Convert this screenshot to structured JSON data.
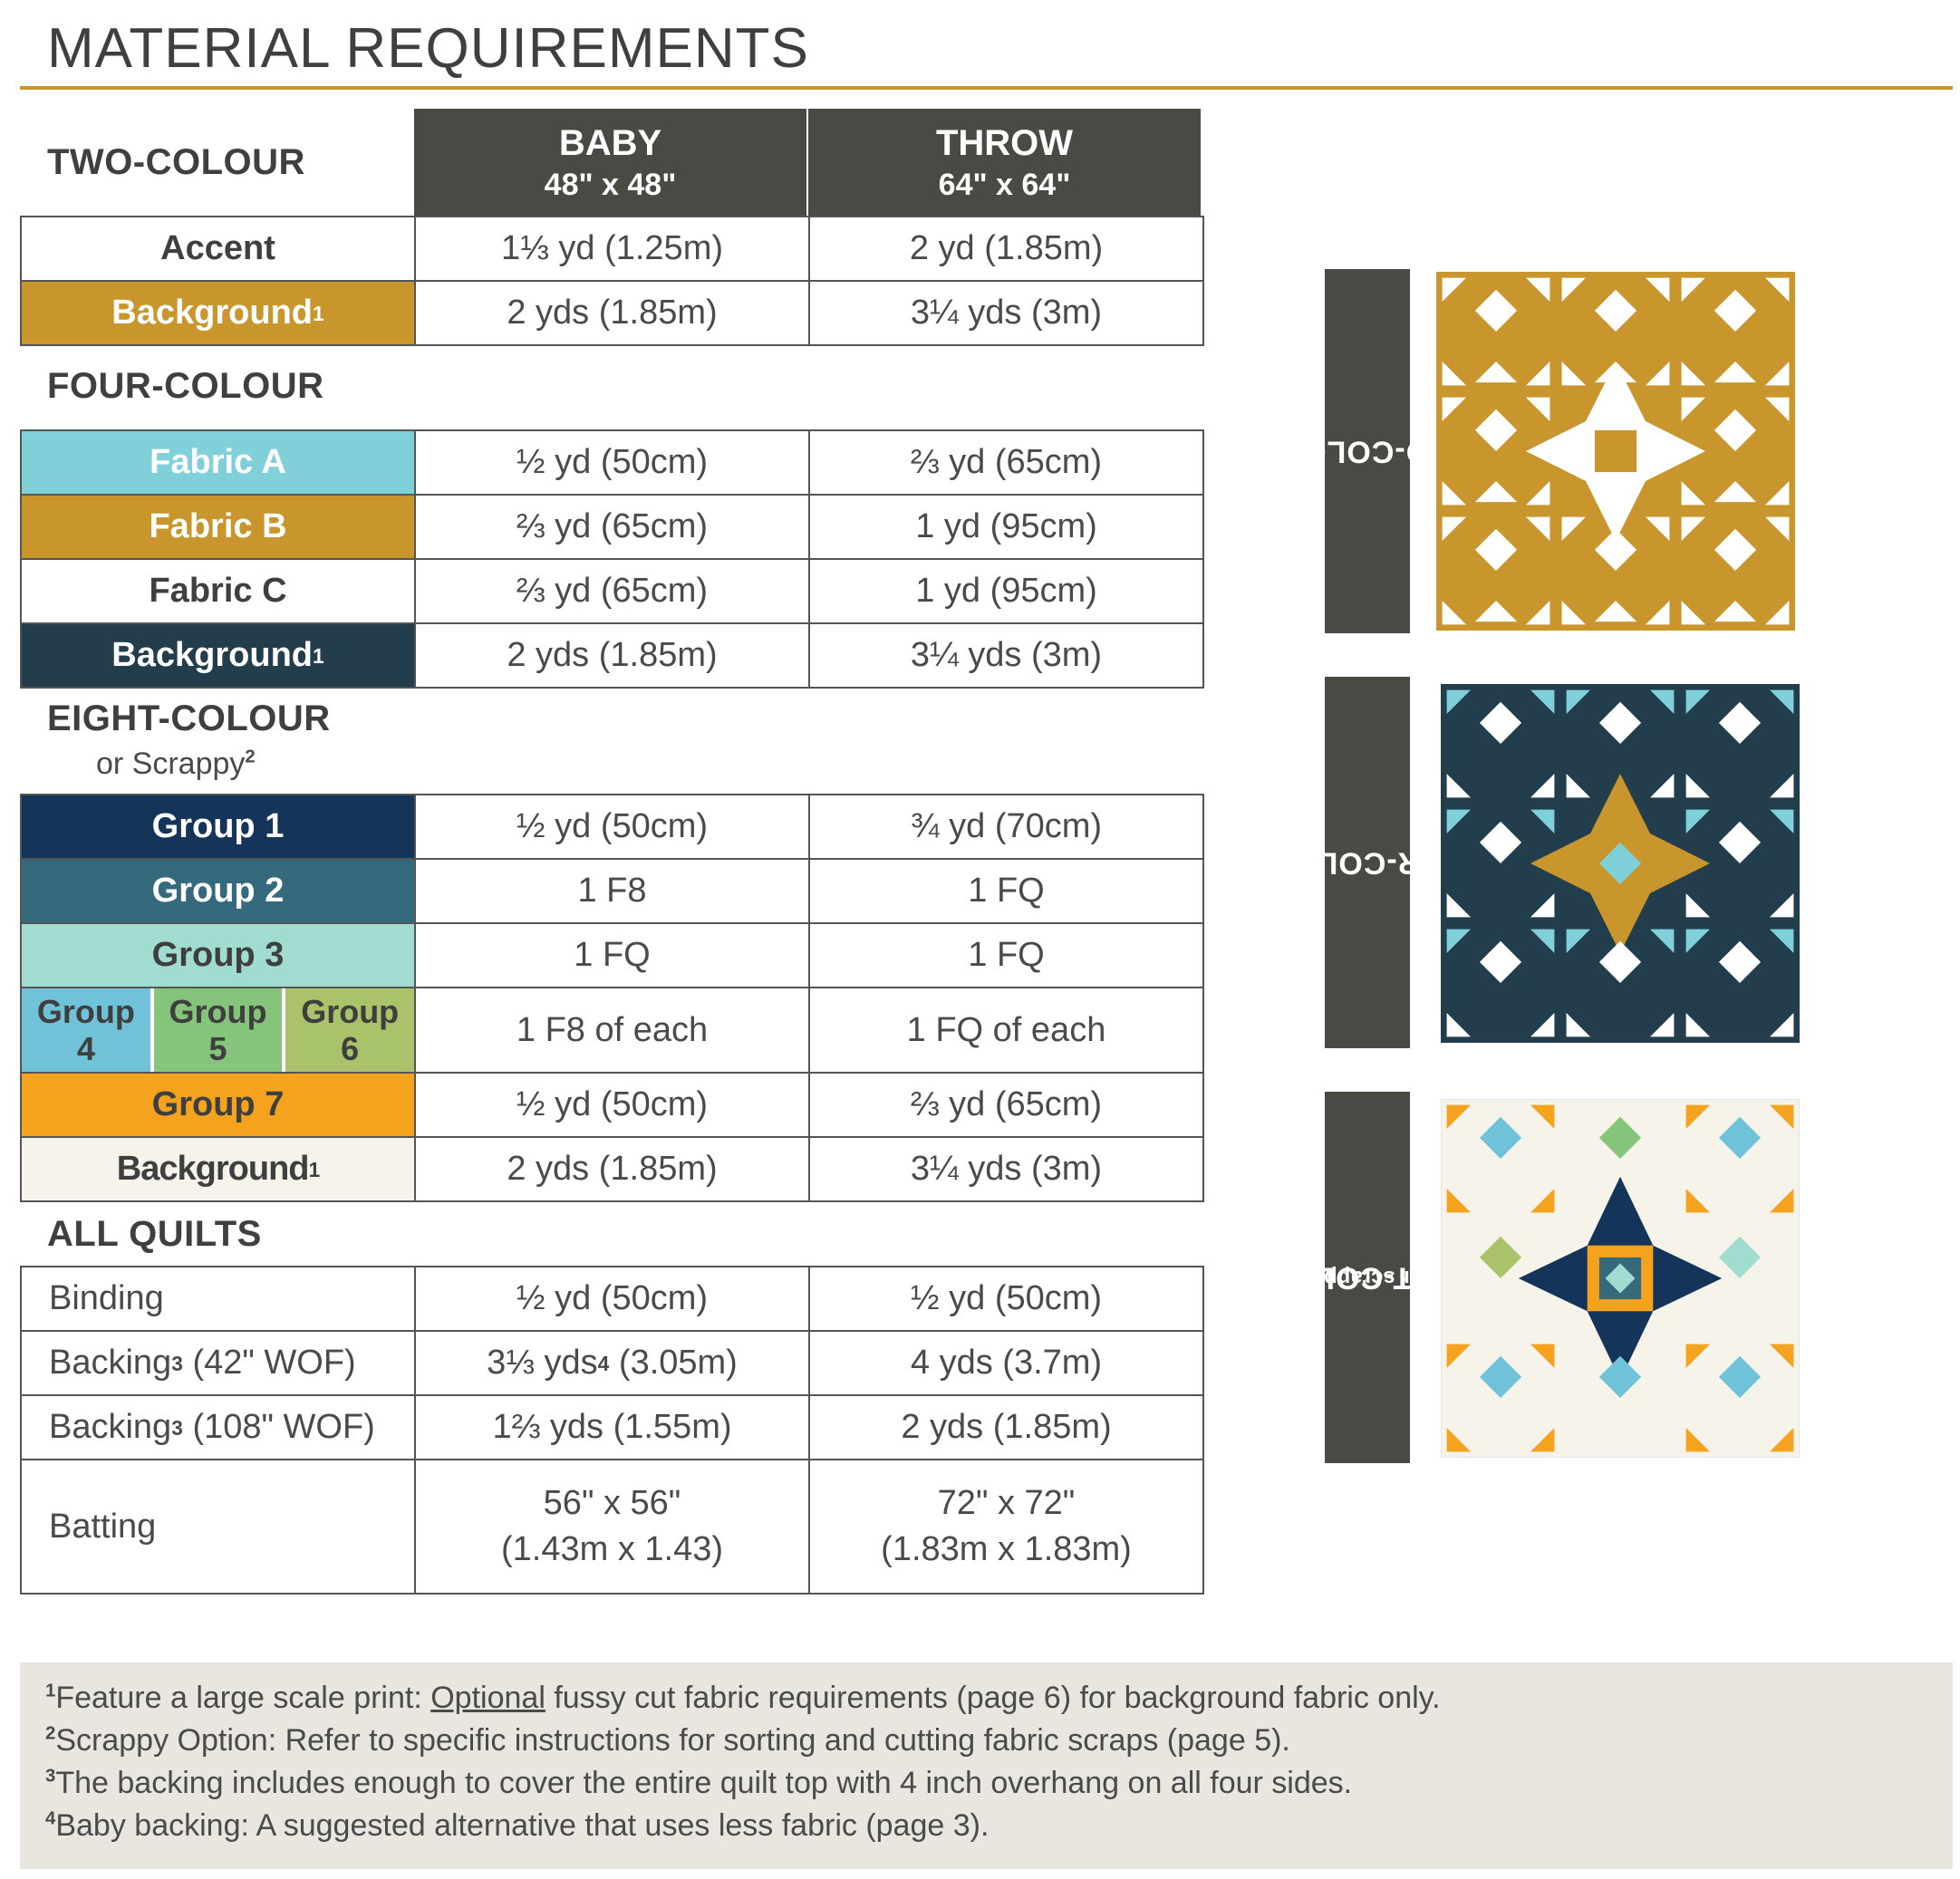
{
  "title": "MATERIAL REQUIREMENTS",
  "columns": [
    {
      "name": "BABY",
      "size": "48\" x 48\""
    },
    {
      "name": "THROW",
      "size": "64\" x 64\""
    }
  ],
  "sections": {
    "two": {
      "label": "TWO-COLOUR",
      "rows": [
        {
          "label": "Accent",
          "baby": "1⅓ yd (1.25m)",
          "throw": "2 yd (1.85m)"
        },
        {
          "label": "Background",
          "sup": "1",
          "baby": "2 yds (1.85m)",
          "throw": "3¼ yds (3m)"
        }
      ]
    },
    "four": {
      "label": "FOUR-COLOUR",
      "rows": [
        {
          "label": "Fabric A",
          "baby": "½ yd (50cm)",
          "throw": "⅔ yd (65cm)"
        },
        {
          "label": "Fabric B",
          "baby": "⅔ yd (65cm)",
          "throw": "1 yd (95cm)"
        },
        {
          "label": "Fabric C",
          "baby": "⅔ yd (65cm)",
          "throw": "1 yd (95cm)"
        },
        {
          "label": "Background",
          "sup": "1",
          "baby": "2 yds (1.85m)",
          "throw": "3¼ yds (3m)"
        }
      ]
    },
    "eight": {
      "label": "EIGHT-COLOUR",
      "sublabel": "or Scrappy",
      "sublabel_sup": "2",
      "rows": [
        {
          "label": "Group 1",
          "baby": "½ yd (50cm)",
          "throw": "¾ yd (70cm)"
        },
        {
          "label": "Group 2",
          "baby": "1 F8",
          "throw": "1 FQ"
        },
        {
          "label": "Group 3",
          "baby": "1 FQ",
          "throw": "1 FQ"
        },
        {
          "groups": [
            {
              "label": "Group",
              "num": "4"
            },
            {
              "label": "Group",
              "num": "5"
            },
            {
              "label": "Group",
              "num": "6"
            }
          ],
          "baby": "1 F8 of each",
          "throw": "1 FQ of each"
        },
        {
          "label": "Group 7",
          "baby": "½ yd (50cm)",
          "throw": "⅔ yd (65cm)"
        },
        {
          "label": "Background",
          "sup": "1",
          "baby": "2 yds (1.85m)",
          "throw": "3¼ yds (3m)"
        }
      ]
    },
    "all": {
      "label": "ALL QUILTS",
      "rows": [
        {
          "label": "Binding",
          "baby": "½ yd (50cm)",
          "throw": "½ yd (50cm)"
        },
        {
          "label": "Backing",
          "sup": "3",
          "label_suffix": " (42\" WOF)",
          "baby": "3⅓ yds",
          "baby_sup": "4",
          "baby_suffix": " (3.05m)",
          "throw": "4 yds (3.7m)"
        },
        {
          "label": "Backing",
          "sup": "3",
          "label_suffix": " (108\" WOF)",
          "baby": "1⅔ yds (1.55m)",
          "throw": "2 yds (1.85m)"
        },
        {
          "label": "Batting",
          "baby": "56\" x 56\"",
          "baby_line2": "(1.43m x 1.43)",
          "throw": "72\" x 72\"",
          "throw_line2": "(1.83m x 1.83m)"
        }
      ]
    }
  },
  "side_labels": {
    "two": "TWO-COLOUR",
    "four": "FOUR-COLOUR",
    "eight": "EIGHT-COLOUR",
    "eight_sub": "(or scrappy)"
  },
  "colors": {
    "header": "#4a4943",
    "accent_gold": "#c8962d",
    "fabric_a": "#7fd0d8",
    "four_background": "#223d4b",
    "group1": "#14345a",
    "group2": "#356a7c",
    "group3": "#a0dcd0",
    "group4": "#6fc2d8",
    "group5": "#84c57b",
    "group6": "#a9c36a",
    "group7": "#f5a21f",
    "eight_background": "#f6f3ea",
    "notes_bg": "#e8e6de"
  },
  "notes": [
    {
      "sup": "1",
      "pre": "Feature a large scale print: ",
      "underline": "Optional",
      "post": " fussy cut fabric requirements (page 6) for background fabric only."
    },
    {
      "sup": "2",
      "pre": "Scrappy Option: Refer to specific instructions for sorting and cutting fabric scraps (page 5).",
      "underline": "",
      "post": ""
    },
    {
      "sup": "3",
      "pre": "The backing includes enough to cover the entire quilt top with 4 inch overhang on all four sides.",
      "underline": "",
      "post": ""
    },
    {
      "sup": "4",
      "pre": "Baby backing: A suggested alternative that uses less fabric (page 3).",
      "underline": "",
      "post": ""
    }
  ]
}
